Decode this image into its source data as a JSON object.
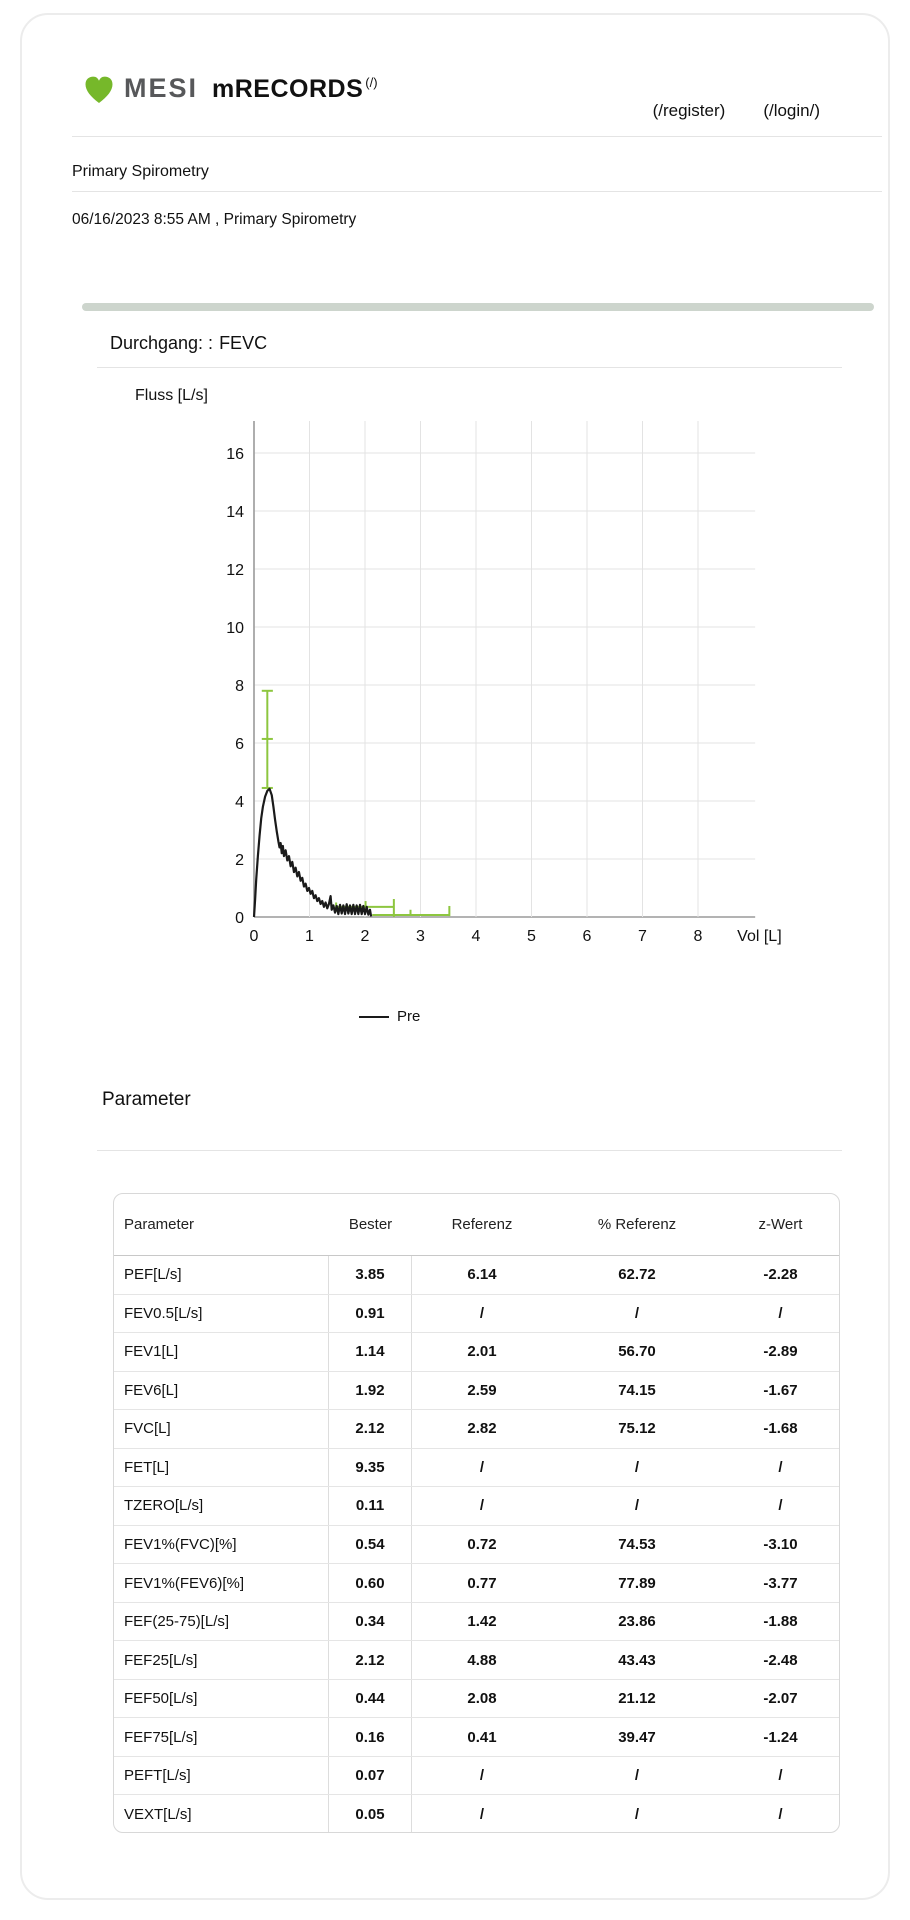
{
  "header": {
    "brand_mesi": "MESI",
    "brand_product": "mRECORDS",
    "brand_link": "(/)",
    "register_link": "(/register)",
    "login_link": "(/login/)"
  },
  "breadcrumb": {
    "title": "Primary Spirometry"
  },
  "record": {
    "datetime_line": "06/16/2023 8:55 AM , Primary Spirometry"
  },
  "section": {
    "run_label": "Durchgang: :",
    "run_value": "FEVC"
  },
  "colors": {
    "brand_green": "#76b82a",
    "chart_green": "#8dc63f",
    "grid_gray": "#e3e3e3",
    "axis_gray": "#9a9a9a",
    "bar_gray_green": "#cdd5cd"
  },
  "chart_data": {
    "type": "line",
    "title": "",
    "xlabel": "Vol [L]",
    "ylabel": "Fluss [L/s]",
    "xlim": [
      0,
      9
    ],
    "ylim": [
      0,
      17
    ],
    "x_ticks": [
      0,
      1,
      2,
      3,
      4,
      5,
      6,
      7,
      8
    ],
    "y_ticks": [
      0,
      2,
      4,
      6,
      8,
      10,
      12,
      14,
      16
    ],
    "grid": true,
    "legend": [
      {
        "label": "Pre",
        "color": "#1a1a1a"
      }
    ],
    "series": [
      {
        "name": "Pre",
        "color": "#1a1a1a",
        "points": [
          [
            0,
            0
          ],
          [
            0.02,
            0.6
          ],
          [
            0.04,
            1.3
          ],
          [
            0.07,
            2.1
          ],
          [
            0.1,
            2.8
          ],
          [
            0.13,
            3.4
          ],
          [
            0.16,
            3.8
          ],
          [
            0.2,
            4.15
          ],
          [
            0.24,
            4.35
          ],
          [
            0.28,
            4.42
          ],
          [
            0.32,
            4.2
          ],
          [
            0.35,
            3.8
          ],
          [
            0.38,
            3.35
          ],
          [
            0.41,
            2.95
          ],
          [
            0.44,
            2.6
          ],
          [
            0.46,
            2.4
          ],
          [
            0.48,
            2.55
          ],
          [
            0.5,
            2.2
          ],
          [
            0.52,
            2.45
          ],
          [
            0.54,
            2.1
          ],
          [
            0.57,
            2.3
          ],
          [
            0.6,
            1.95
          ],
          [
            0.63,
            2.1
          ],
          [
            0.66,
            1.75
          ],
          [
            0.69,
            1.9
          ],
          [
            0.72,
            1.55
          ],
          [
            0.75,
            1.7
          ],
          [
            0.78,
            1.4
          ],
          [
            0.81,
            1.55
          ],
          [
            0.84,
            1.25
          ],
          [
            0.87,
            1.35
          ],
          [
            0.9,
            1.05
          ],
          [
            0.93,
            1.15
          ],
          [
            0.96,
            0.9
          ],
          [
            0.99,
            1.0
          ],
          [
            1.02,
            0.8
          ],
          [
            1.05,
            0.9
          ],
          [
            1.08,
            0.65
          ],
          [
            1.11,
            0.75
          ],
          [
            1.14,
            0.55
          ],
          [
            1.17,
            0.65
          ],
          [
            1.2,
            0.45
          ],
          [
            1.23,
            0.55
          ],
          [
            1.26,
            0.35
          ],
          [
            1.29,
            0.5
          ],
          [
            1.32,
            0.3
          ],
          [
            1.35,
            0.45
          ],
          [
            1.38,
            0.72
          ],
          [
            1.4,
            0.25
          ],
          [
            1.43,
            0.4
          ],
          [
            1.46,
            0.15
          ],
          [
            1.49,
            0.38
          ],
          [
            1.52,
            0.1
          ],
          [
            1.55,
            0.42
          ],
          [
            1.58,
            0.12
          ],
          [
            1.61,
            0.4
          ],
          [
            1.64,
            0.1
          ],
          [
            1.67,
            0.44
          ],
          [
            1.7,
            0.12
          ],
          [
            1.73,
            0.4
          ],
          [
            1.76,
            0.1
          ],
          [
            1.79,
            0.42
          ],
          [
            1.82,
            0.1
          ],
          [
            1.85,
            0.4
          ],
          [
            1.88,
            0.1
          ],
          [
            1.91,
            0.42
          ],
          [
            1.94,
            0.1
          ],
          [
            1.97,
            0.38
          ],
          [
            2.0,
            0.1
          ],
          [
            2.03,
            0.35
          ],
          [
            2.06,
            0.08
          ],
          [
            2.09,
            0.25
          ],
          [
            2.11,
            0.02
          ]
        ]
      }
    ],
    "reference_markers": {
      "color": "#8dc63f",
      "pef": {
        "vol": 0.24,
        "flow_low": 4.45,
        "flow_mid": 6.14,
        "flow_high": 7.8
      },
      "fev1": {
        "flow": 0.35,
        "vol_start": 1.48,
        "vol_mid": 2.01,
        "vol_end": 2.52,
        "start_cap": [
          0.18,
          0.5
        ],
        "mid_cap": [
          0.35,
          0.55
        ],
        "end_cap": [
          0.0,
          0.62
        ]
      },
      "fvc": {
        "flow": 0.07,
        "vol_start": 2.13,
        "vol_mid": 2.82,
        "vol_end": 3.52,
        "mid_cap": [
          0.07,
          0.25
        ],
        "end_cap": [
          0.03,
          0.38
        ]
      }
    }
  },
  "parameters": {
    "heading": "Parameter",
    "columns": [
      "Parameter",
      "Bester",
      "Referenz",
      "% Referenz",
      "z-Wert"
    ],
    "rows": [
      [
        "PEF[L/s]",
        "3.85",
        "6.14",
        "62.72",
        "-2.28"
      ],
      [
        "FEV0.5[L/s]",
        "0.91",
        "/",
        "/",
        "/"
      ],
      [
        "FEV1[L]",
        "1.14",
        "2.01",
        "56.70",
        "-2.89"
      ],
      [
        "FEV6[L]",
        "1.92",
        "2.59",
        "74.15",
        "-1.67"
      ],
      [
        "FVC[L]",
        "2.12",
        "2.82",
        "75.12",
        "-1.68"
      ],
      [
        "FET[L]",
        "9.35",
        "/",
        "/",
        "/"
      ],
      [
        "TZERO[L/s]",
        "0.11",
        "/",
        "/",
        "/"
      ],
      [
        "FEV1%(FVC)[%]",
        "0.54",
        "0.72",
        "74.53",
        "-3.10"
      ],
      [
        "FEV1%(FEV6)[%]",
        "0.60",
        "0.77",
        "77.89",
        "-3.77"
      ],
      [
        "FEF(25-75)[L/s]",
        "0.34",
        "1.42",
        "23.86",
        "-1.88"
      ],
      [
        "FEF25[L/s]",
        "2.12",
        "4.88",
        "43.43",
        "-2.48"
      ],
      [
        "FEF50[L/s]",
        "0.44",
        "2.08",
        "21.12",
        "-2.07"
      ],
      [
        "FEF75[L/s]",
        "0.16",
        "0.41",
        "39.47",
        "-1.24"
      ],
      [
        "PEFT[L/s]",
        "0.07",
        "/",
        "/",
        "/"
      ],
      [
        "VEXT[L/s]",
        "0.05",
        "/",
        "/",
        "/"
      ]
    ]
  }
}
